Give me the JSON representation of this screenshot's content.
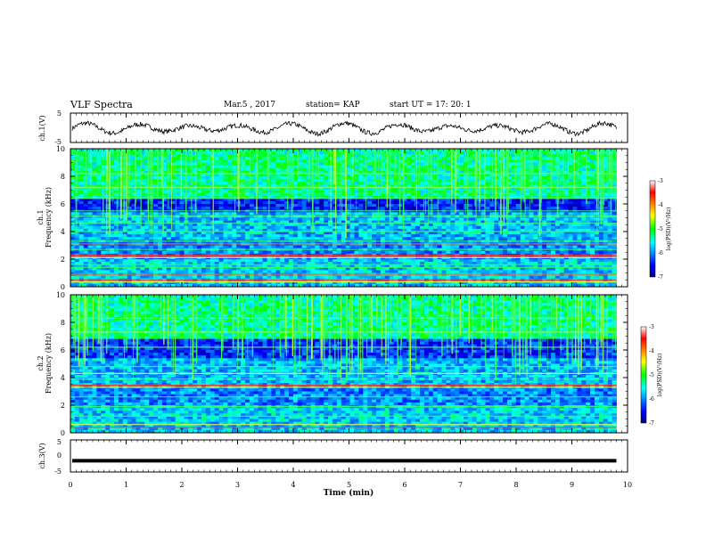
{
  "header": {
    "title": "VLF Spectra",
    "date": "Mar.5 , 2017",
    "station": "station= KAP",
    "start_ut": "start UT = 17: 20: 1"
  },
  "chart_data": [
    {
      "type": "line",
      "panel": "ch1-waveform",
      "ylabel": "ch.1(V)",
      "ylim": [
        -5,
        5
      ],
      "yticks": [
        "5",
        "-5"
      ],
      "xlim": [
        0,
        10
      ],
      "x_data_end": 9.8,
      "description_of_signal": "oscillating trace around 0 V, amplitude ~1.5 V, ~10 slow cycles",
      "color": "#000000"
    },
    {
      "type": "heatmap",
      "panel": "ch1-spectrogram",
      "ylabel": "ch.1\nFrequency (kHz)",
      "ylabel_line1": "ch.1",
      "ylabel_line2": "Frequency (kHz)",
      "ylim": [
        0,
        10
      ],
      "yticks": [
        "0",
        "2",
        "4",
        "6",
        "8",
        "10"
      ],
      "xlim": [
        0,
        10
      ],
      "x_data_end": 9.8,
      "colorbar": {
        "label": "log(PSD)(V²/Hz)",
        "range": [
          -7,
          -3
        ],
        "ticks": [
          "-3",
          "-4",
          "-5",
          "-6",
          "-7"
        ]
      }
    },
    {
      "type": "heatmap",
      "panel": "ch2-spectrogram",
      "ylabel_line1": "ch.2",
      "ylabel_line2": "Frequency (kHz)",
      "ylim": [
        0,
        10
      ],
      "yticks": [
        "0",
        "2",
        "4",
        "6",
        "8",
        "10"
      ],
      "xlim": [
        0,
        10
      ],
      "x_data_end": 9.8,
      "colorbar": {
        "label": "log(PSD)(V²/Hz)",
        "range": [
          -7,
          -3
        ],
        "ticks": [
          "-3",
          "-4",
          "-5",
          "-6",
          "-7"
        ]
      }
    },
    {
      "type": "line",
      "panel": "ch3-waveform",
      "ylabel": "ch.3(V)",
      "ylim": [
        -5,
        5
      ],
      "yticks": [
        "5",
        "0",
        "-5"
      ],
      "xlim": [
        0,
        10
      ],
      "x_data_end": 9.8,
      "constant_value": -1.5,
      "color": "#000000"
    }
  ],
  "xaxis": {
    "label": "Time (min)",
    "ticks": [
      "0",
      "1",
      "2",
      "3",
      "4",
      "5",
      "6",
      "7",
      "8",
      "9",
      "10"
    ]
  }
}
